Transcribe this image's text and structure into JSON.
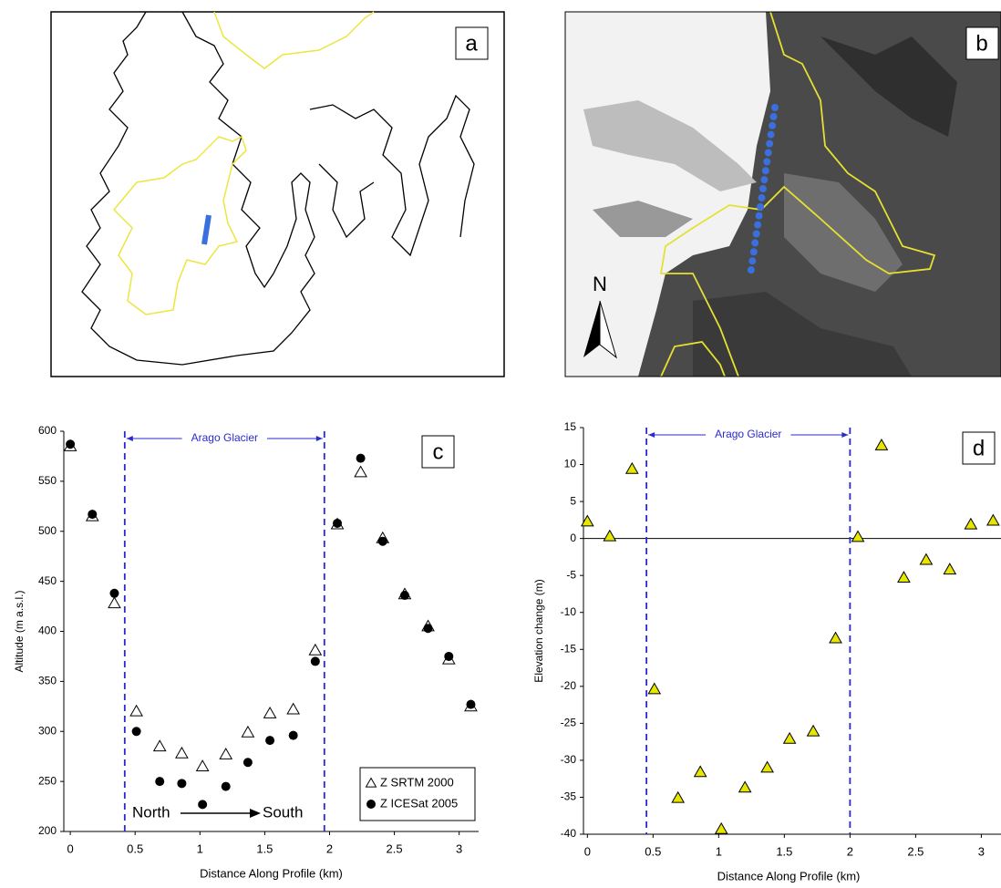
{
  "maps": [
    {
      "panel_label": "a"
    },
    {
      "panel_label": "b",
      "north_label": "N"
    }
  ],
  "chart_data": [
    {
      "type": "scatter",
      "panel_label": "c",
      "x_label": "Distance Along Profile (km)",
      "y_label": "Altitude (m a.s.l.)",
      "x": [
        0,
        0.17,
        0.34,
        0.51,
        0.69,
        0.86,
        1.02,
        1.2,
        1.37,
        1.54,
        1.72,
        1.89,
        2.06,
        2.24,
        2.41,
        2.58,
        2.76,
        2.92,
        3.09
      ],
      "series": [
        {
          "name": "Z SRTM 2000",
          "marker": "triangle",
          "color": "#ffffff",
          "values": [
            585,
            515,
            428,
            320,
            285,
            278,
            265,
            277,
            299,
            318,
            322,
            381,
            507,
            559,
            493,
            437,
            405,
            372,
            325
          ]
        },
        {
          "name": "Z ICESat 2005",
          "marker": "circle",
          "color": "#000000",
          "values": [
            587,
            517,
            438,
            300,
            250,
            248,
            227,
            245,
            269,
            291,
            296,
            370,
            508,
            573,
            490,
            436,
            403,
            375,
            327
          ]
        }
      ],
      "xlim": [
        -0.05,
        3.15
      ],
      "xticks": [
        0,
        0.5,
        1,
        1.5,
        2,
        2.5,
        3
      ],
      "ylim": [
        200,
        600
      ],
      "yticks": [
        200,
        250,
        300,
        350,
        400,
        450,
        500,
        550,
        600
      ],
      "vlines": [
        0.42,
        1.96
      ],
      "bracket_label": "Arago Glacier",
      "direction_labels": [
        "North",
        "South"
      ],
      "legend": "lower right"
    },
    {
      "type": "scatter",
      "panel_label": "d",
      "x_label": "Distance Along Profile (km)",
      "y_label": "Elevation change (m)",
      "x": [
        0,
        0.17,
        0.34,
        0.51,
        0.69,
        0.86,
        1.02,
        1.2,
        1.37,
        1.54,
        1.72,
        1.89,
        2.06,
        2.24,
        2.41,
        2.58,
        2.76,
        2.92,
        3.09
      ],
      "series": [
        {
          "marker": "triangle",
          "color": "#e6e600",
          "values": [
            2.3,
            0.3,
            9.4,
            -20.4,
            -35.1,
            -31.6,
            -39.3,
            -33.7,
            -31.0,
            -27.1,
            -26.1,
            -13.5,
            0.2,
            12.6,
            -5.3,
            -2.9,
            -4.2,
            1.9,
            2.4
          ]
        }
      ],
      "xlim": [
        -0.03,
        3.15
      ],
      "xticks": [
        0,
        0.5,
        1,
        1.5,
        2,
        2.5,
        3
      ],
      "ylim": [
        -40,
        15
      ],
      "yticks": [
        -40,
        -35,
        -30,
        -25,
        -20,
        -15,
        -10,
        -5,
        0,
        5,
        10,
        15
      ],
      "vlines": [
        0.45,
        2.0
      ],
      "bracket_label": "Arago Glacier",
      "axhline": 0
    }
  ]
}
